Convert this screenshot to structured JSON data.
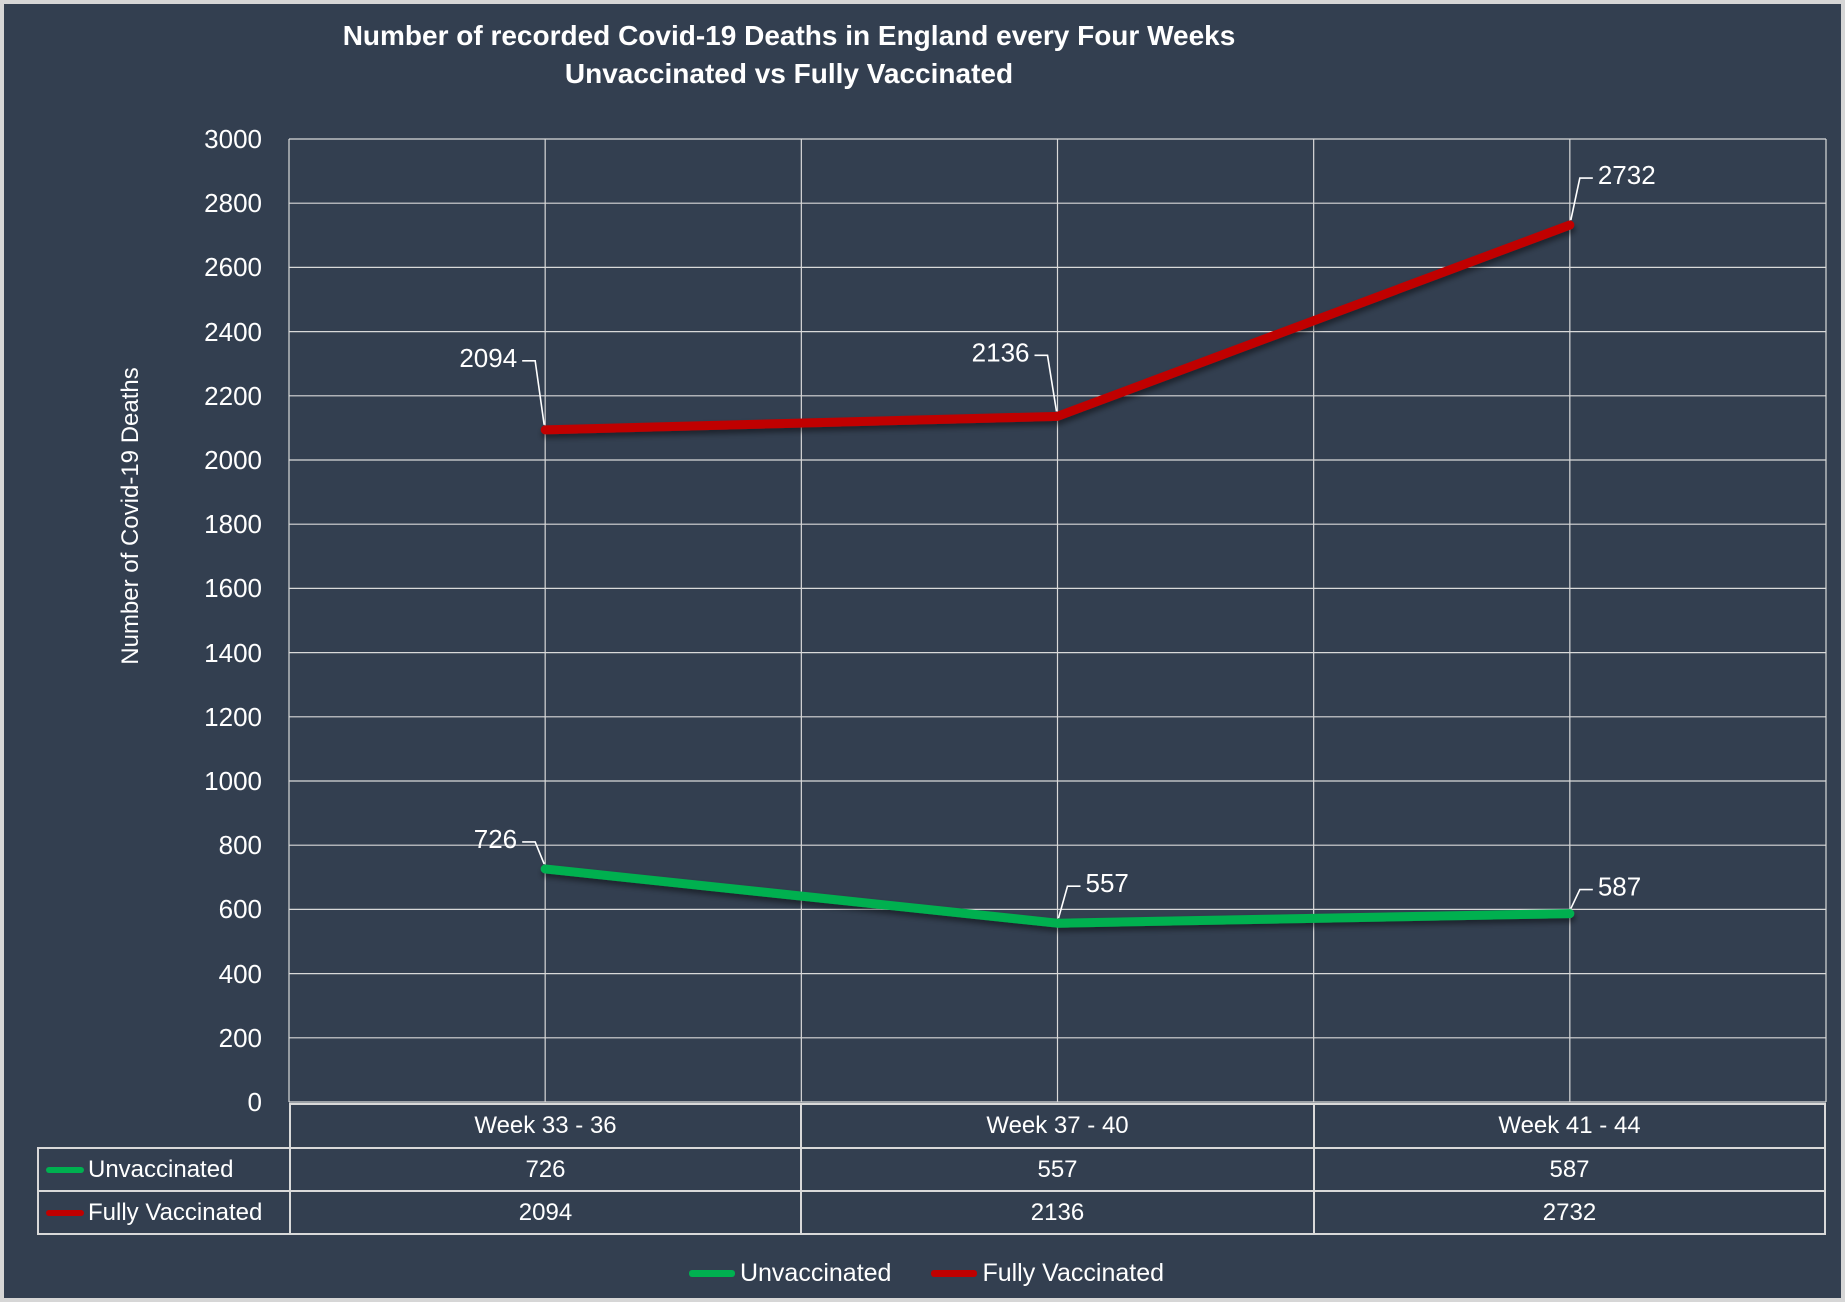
{
  "colors": {
    "background": "#333F50",
    "gridline": "#D9D9D9",
    "frame": "#D6D6D6",
    "text": "#FFFFFF",
    "unvaccinated_green": "#00B050",
    "fully_vaccinated_red": "#C00000"
  },
  "title": {
    "line1": "Number of recorded Covid-19 Deaths in England every Four Weeks",
    "line2": "Unvaccinated vs Fully Vaccinated"
  },
  "y_axis": {
    "label": "Number of Covid-19 Deaths",
    "tick_labels": [
      "3000",
      "2800",
      "2600",
      "2400",
      "2200",
      "2000",
      "1800",
      "1600",
      "1400",
      "1200",
      "1000",
      "800",
      "600",
      "400",
      "200",
      "0"
    ]
  },
  "chart_data": {
    "type": "line",
    "title": "Number of recorded Covid-19 Deaths in England every Four Weeks",
    "subtitle": "Unvaccinated vs Fully Vaccinated",
    "categories": [
      "Week 33 - 36",
      "Week 37 - 40",
      "Week 41 - 44"
    ],
    "series": [
      {
        "name": "Unvaccinated",
        "color": "#00B050",
        "values": [
          726,
          557,
          587
        ]
      },
      {
        "name": "Fully Vaccinated",
        "color": "#C00000",
        "values": [
          2094,
          2136,
          2732
        ]
      }
    ],
    "ylabel": "Number of Covid-19 Deaths",
    "xlabel": "",
    "ylim": [
      0,
      3000
    ],
    "ytick_step": 200,
    "grid": true,
    "legend_position": "bottom",
    "data_table_shown": true,
    "data_labels_shown": true
  },
  "legend": {
    "items": [
      {
        "label": "Unvaccinated",
        "color": "#00B050"
      },
      {
        "label": "Fully Vaccinated",
        "color": "#C00000"
      }
    ]
  }
}
